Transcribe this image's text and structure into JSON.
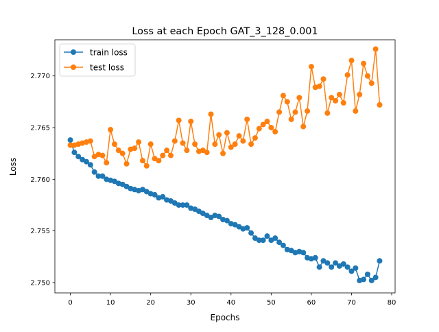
{
  "chart_data": {
    "type": "line",
    "title": "Loss at each Epoch GAT_3_128_0.001",
    "xlabel": "Epochs",
    "ylabel": "Loss",
    "xlim": [
      -3.85,
      80.85
    ],
    "ylim": [
      2.749,
      2.7735
    ],
    "xticks": [
      0,
      10,
      20,
      30,
      40,
      50,
      60,
      70,
      80
    ],
    "yticks": [
      2.75,
      2.755,
      2.76,
      2.765,
      2.77
    ],
    "xtick_labels": [
      "0",
      "10",
      "20",
      "30",
      "40",
      "50",
      "60",
      "70",
      "80"
    ],
    "ytick_labels": [
      "2.750",
      "2.755",
      "2.760",
      "2.765",
      "2.770"
    ],
    "grid": false,
    "legend": "top-left",
    "x": [
      0,
      1,
      2,
      3,
      4,
      5,
      6,
      7,
      8,
      9,
      10,
      11,
      12,
      13,
      14,
      15,
      16,
      17,
      18,
      19,
      20,
      21,
      22,
      23,
      24,
      25,
      26,
      27,
      28,
      29,
      30,
      31,
      32,
      33,
      34,
      35,
      36,
      37,
      38,
      39,
      40,
      41,
      42,
      43,
      44,
      45,
      46,
      47,
      48,
      49,
      50,
      51,
      52,
      53,
      54,
      55,
      56,
      57,
      58,
      59,
      60,
      61,
      62,
      63,
      64,
      65,
      66,
      67,
      68,
      69,
      70,
      71,
      72,
      73,
      74,
      75,
      76,
      77
    ],
    "series": [
      {
        "name": "train loss",
        "color": "#1f77b4",
        "values": [
          2.7638,
          2.7626,
          2.7622,
          2.7619,
          2.7617,
          2.7614,
          2.7607,
          2.7603,
          2.7603,
          2.76,
          2.7599,
          2.7598,
          2.7596,
          2.7595,
          2.7593,
          2.7591,
          2.759,
          2.7589,
          2.759,
          2.7588,
          2.7586,
          2.7585,
          2.7582,
          2.7583,
          2.758,
          2.7579,
          2.7577,
          2.7575,
          2.7575,
          2.7575,
          2.7572,
          2.7571,
          2.7569,
          2.7567,
          2.7565,
          2.7563,
          2.7565,
          2.7564,
          2.7561,
          2.756,
          2.7557,
          2.7556,
          2.7554,
          2.7552,
          2.7553,
          2.7548,
          2.7543,
          2.7541,
          2.7541,
          2.7545,
          2.7541,
          2.7543,
          2.7539,
          2.7536,
          2.7532,
          2.7531,
          2.7529,
          2.753,
          2.7529,
          2.7524,
          2.7523,
          2.7524,
          2.7515,
          2.7521,
          2.7519,
          2.7515,
          2.7519,
          2.7516,
          2.7518,
          2.7515,
          2.7511,
          2.7514,
          2.7502,
          2.7503,
          2.7508,
          2.7502,
          2.7505,
          2.7521
        ]
      },
      {
        "name": "test loss",
        "color": "#ff7f0e",
        "values": [
          2.7633,
          2.7633,
          2.7634,
          2.7635,
          2.7636,
          2.7637,
          2.7622,
          2.7624,
          2.7623,
          2.7616,
          2.7648,
          2.7634,
          2.7628,
          2.7625,
          2.7615,
          2.7629,
          2.763,
          2.7636,
          2.7618,
          2.7613,
          2.7634,
          2.762,
          2.7618,
          2.7623,
          2.7628,
          2.7623,
          2.7637,
          2.7657,
          2.7635,
          2.7628,
          2.7656,
          2.7634,
          2.7627,
          2.7628,
          2.7626,
          2.7663,
          2.7634,
          2.7643,
          2.7625,
          2.7645,
          2.7631,
          2.7634,
          2.7642,
          2.7637,
          2.7658,
          2.7634,
          2.764,
          2.7649,
          2.7653,
          2.7656,
          2.765,
          2.7646,
          2.7665,
          2.7681,
          2.7675,
          2.7658,
          2.7665,
          2.7679,
          2.7651,
          2.7666,
          2.7709,
          2.7689,
          2.769,
          2.7697,
          2.7664,
          2.7679,
          2.7676,
          2.7682,
          2.7674,
          2.7701,
          2.7715,
          2.7666,
          2.7682,
          2.7712,
          2.77,
          2.7693,
          2.7726,
          2.7672
        ]
      }
    ]
  }
}
